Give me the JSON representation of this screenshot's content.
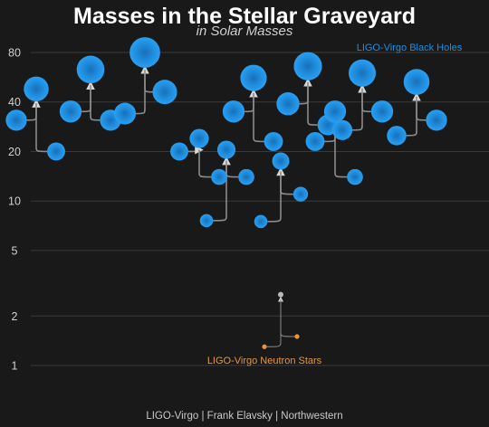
{
  "title": "Masses in the Stellar Graveyard",
  "subtitle": "in Solar Masses",
  "credit": "LIGO-Virgo | Frank Elavsky | Northwestern",
  "chart_data": {
    "type": "scatter",
    "title": "Masses in the Stellar Graveyard",
    "subtitle": "in Solar Masses",
    "yscale": "log",
    "ylim": [
      0.75,
      95
    ],
    "yticks": [
      1,
      2,
      5,
      10,
      20,
      40,
      80
    ],
    "grid": true,
    "colors": {
      "black_hole": "#1f8fe0",
      "neutron_star": "#e8953c",
      "remnant_ns": "#b8b8b8",
      "arrow": "#8c8c8c",
      "background": "#191919"
    },
    "series": [
      {
        "name": "LIGO-Virgo Black Holes",
        "legend_position": "top-right"
      },
      {
        "name": "LIGO-Virgo Neutron Stars",
        "legend_position": "bottom-center"
      }
    ],
    "mergers": [
      {
        "class": "bh",
        "x": 1,
        "m1": 31,
        "m2": 20,
        "final": 48
      },
      {
        "class": "bh",
        "x": 2,
        "m1": 35,
        "m2": 31,
        "final": 63
      },
      {
        "class": "bh",
        "x": 3,
        "m1": 34,
        "m2": 46,
        "final": 80
      },
      {
        "class": "bh",
        "x": 4,
        "m1": 20,
        "m2": 14,
        "final": 24
      },
      {
        "class": "bh",
        "x": 4.5,
        "m1": 7.6,
        "m2": 14,
        "final": 20.5
      },
      {
        "class": "bh",
        "x": 5,
        "m1": 35,
        "m2": 23,
        "final": 56
      },
      {
        "class": "bh",
        "x": 5.5,
        "m1": 7.5,
        "m2": 11,
        "final": 17.5
      },
      {
        "class": "bh",
        "x": 6,
        "m1": 39,
        "m2": 29,
        "final": 66
      },
      {
        "class": "bh",
        "x": 6.5,
        "m1": 23,
        "m2": 14,
        "final": 35
      },
      {
        "class": "bh",
        "x": 7,
        "m1": 27,
        "m2": 35,
        "final": 60
      },
      {
        "class": "bh",
        "x": 8,
        "m1": 25,
        "m2": 31,
        "final": 53
      },
      {
        "class": "ns",
        "x": 5.5,
        "m1": 1.3,
        "m2": 1.5,
        "final": 2.7
      }
    ]
  }
}
